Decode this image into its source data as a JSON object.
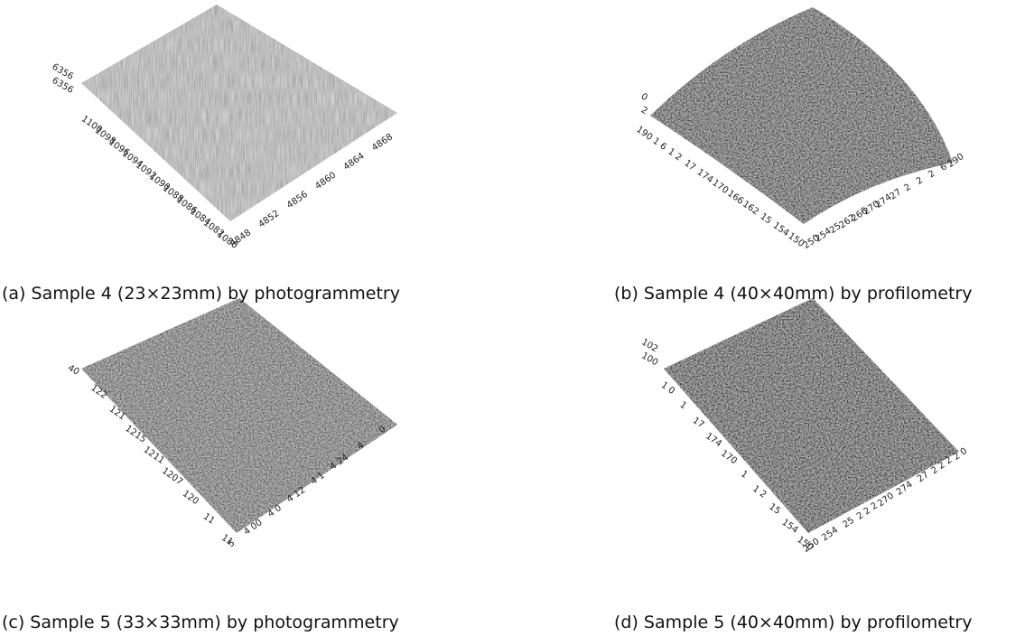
{
  "panels": [
    {
      "caption": "(a) Sample 4 (23×23mm) by photogrammetry",
      "z_labels": [
        "6356",
        "6356"
      ],
      "left_axis": [
        "1100",
        "1098",
        "1096",
        "1094",
        "1092",
        "1090",
        "1088",
        "1086",
        "1084",
        "1082",
        "1080"
      ],
      "right_axis": [
        "4848",
        "4852",
        "4856",
        "4860",
        "4864",
        "4868"
      ]
    },
    {
      "caption": "(b) Sample 4 (40×40mm) by profilometry",
      "z_labels": [
        "0",
        "2"
      ],
      "left_axis": [
        "190",
        "1 6",
        "1 2",
        "17",
        "174",
        "170",
        "166",
        "162",
        "15",
        "154",
        "150"
      ],
      "right_axis": [
        "250",
        "254",
        "25",
        "262",
        "266",
        "270",
        "274",
        "27",
        "2",
        "2",
        "2",
        "6",
        "290"
      ]
    },
    {
      "caption": "(c) Sample 5 (33×33mm) by photogrammetry",
      "z_labels": [
        "40"
      ],
      "left_axis": [
        "122",
        "121",
        "1215",
        "1211",
        "1207",
        "120",
        "11",
        "11"
      ],
      "right_axis": [
        "5",
        "4 00",
        "4 0",
        "4 12",
        "4 1",
        "4 24",
        "4",
        "0"
      ]
    },
    {
      "caption": "(d) Sample 5 (40×40mm) by profilometry",
      "z_labels": [
        "102",
        "100"
      ],
      "left_axis": [
        "1 0",
        "1",
        "17",
        "174",
        "170",
        "1",
        "1 2",
        "15",
        "154",
        "150"
      ],
      "right_axis": [
        "250",
        "254",
        "25",
        "2 2 2",
        "270",
        "274",
        "27",
        "2 2 2",
        "2 0"
      ]
    }
  ]
}
